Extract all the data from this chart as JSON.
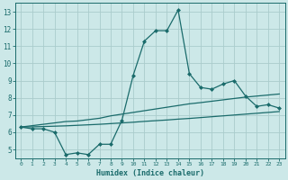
{
  "title": "",
  "xlabel": "Humidex (Indice chaleur)",
  "bg_color": "#cce8e8",
  "line_color": "#1a6b6b",
  "grid_color": "#aacccc",
  "x_ticks": [
    0,
    1,
    2,
    3,
    4,
    5,
    6,
    7,
    8,
    9,
    10,
    11,
    12,
    13,
    14,
    15,
    16,
    17,
    18,
    19,
    20,
    21,
    22,
    23
  ],
  "y_ticks": [
    5,
    6,
    7,
    8,
    9,
    10,
    11,
    12,
    13
  ],
  "ylim": [
    4.5,
    13.5
  ],
  "xlim": [
    -0.5,
    23.5
  ],
  "line1_x": [
    0,
    1,
    2,
    3,
    4,
    5,
    6,
    7,
    8,
    9,
    10,
    11,
    12,
    13,
    14,
    15,
    16,
    17,
    18,
    19,
    20,
    21,
    22,
    23
  ],
  "line1_y": [
    6.3,
    6.2,
    6.2,
    6.0,
    4.7,
    4.8,
    4.7,
    5.3,
    5.3,
    6.7,
    9.3,
    11.3,
    11.9,
    11.9,
    13.1,
    9.4,
    8.6,
    8.5,
    8.8,
    9.0,
    8.1,
    7.5,
    7.6,
    7.4
  ],
  "line2_x": [
    0,
    1,
    2,
    3,
    4,
    5,
    6,
    7,
    8,
    9,
    10,
    11,
    12,
    13,
    14,
    15,
    16,
    17,
    18,
    19,
    20,
    21,
    22,
    23
  ],
  "line2_y": [
    6.3,
    6.38,
    6.46,
    6.54,
    6.62,
    6.65,
    6.73,
    6.81,
    6.95,
    7.05,
    7.15,
    7.25,
    7.35,
    7.45,
    7.55,
    7.65,
    7.72,
    7.8,
    7.88,
    7.96,
    8.04,
    8.1,
    8.16,
    8.22
  ],
  "line3_x": [
    0,
    1,
    2,
    3,
    4,
    5,
    6,
    7,
    8,
    9,
    10,
    11,
    12,
    13,
    14,
    15,
    16,
    17,
    18,
    19,
    20,
    21,
    22,
    23
  ],
  "line3_y": [
    6.3,
    6.31,
    6.33,
    6.35,
    6.37,
    6.4,
    6.43,
    6.46,
    6.5,
    6.54,
    6.58,
    6.63,
    6.67,
    6.71,
    6.76,
    6.8,
    6.85,
    6.9,
    6.95,
    7.0,
    7.05,
    7.1,
    7.15,
    7.2
  ]
}
